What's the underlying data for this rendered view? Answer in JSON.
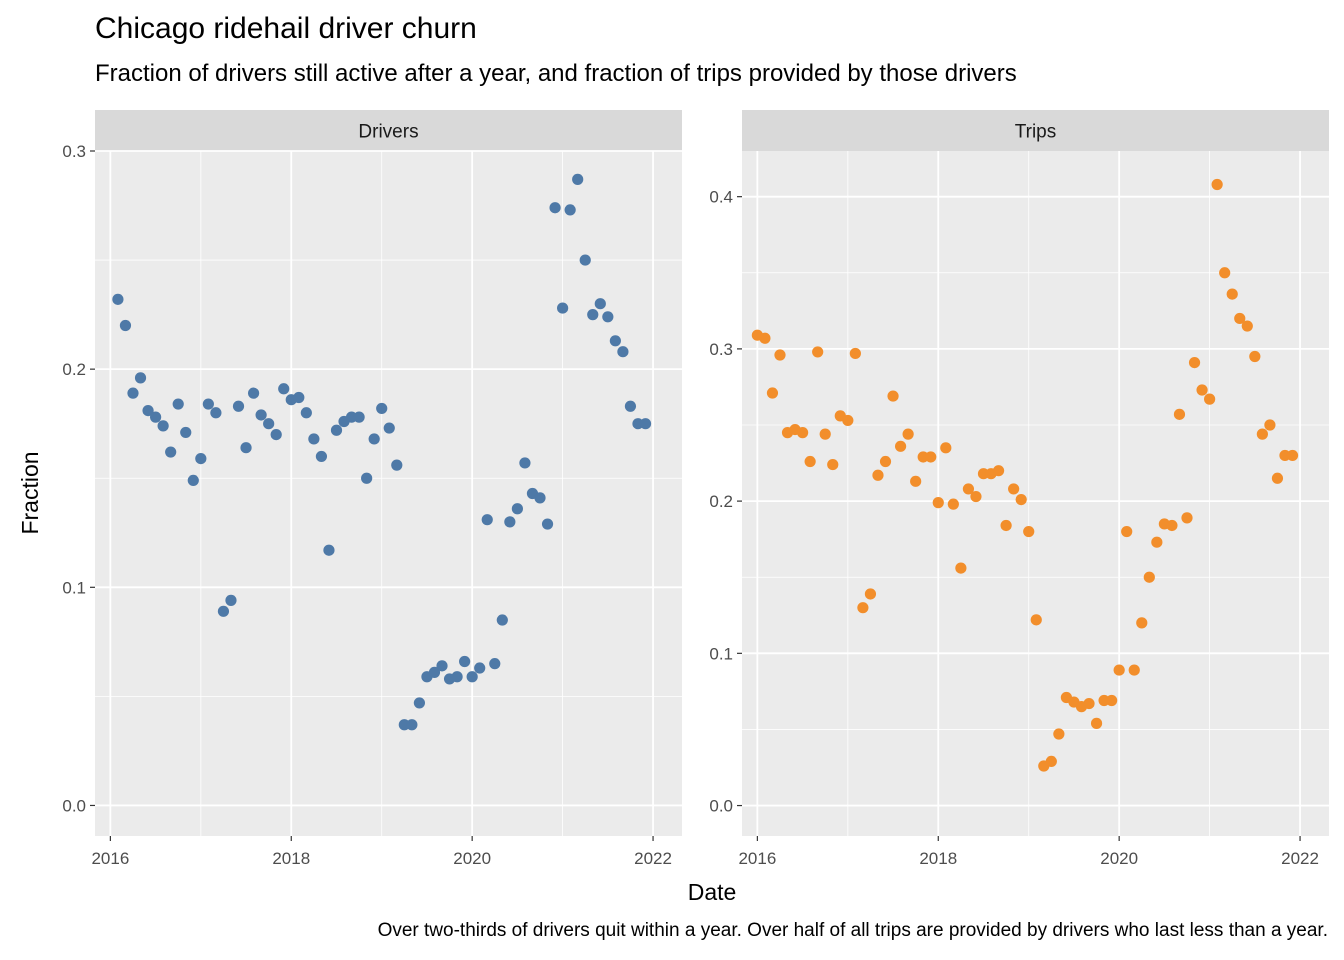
{
  "title": "Chicago ridehail driver churn",
  "subtitle": "Fraction of drivers still active after a year, and fraction of trips provided by those drivers",
  "caption": "Over two-thirds of drivers quit within a year. Over half of all trips are provided by drivers who last less than a year.",
  "colors": {
    "drivers": "#4e79a7",
    "trips": "#f28e2b",
    "panel_bg": "#ebebeb",
    "strip_bg": "#d9d9d9",
    "grid": "#ffffff"
  },
  "chart_data": {
    "type": "scatter",
    "xlabel": "Date",
    "ylabel": "Fraction",
    "x_ticks": [
      "2016",
      "2018",
      "2020",
      "2022"
    ],
    "grid": true,
    "panels": [
      {
        "name": "Drivers",
        "ylim": [
          -0.014,
          0.3
        ],
        "y_ticks": [
          "0.0",
          "0.1",
          "0.2",
          "0.3"
        ],
        "x": [
          "2016-02",
          "2016-03",
          "2016-04",
          "2016-05",
          "2016-06",
          "2016-07",
          "2016-08",
          "2016-09",
          "2016-10",
          "2016-11",
          "2016-12",
          "2017-01",
          "2017-02",
          "2017-03",
          "2017-04",
          "2017-05",
          "2017-06",
          "2017-07",
          "2017-08",
          "2017-09",
          "2017-10",
          "2017-11",
          "2017-12",
          "2018-01",
          "2018-02",
          "2018-03",
          "2018-04",
          "2018-05",
          "2018-06",
          "2018-07",
          "2018-08",
          "2018-09",
          "2018-10",
          "2018-11",
          "2018-12",
          "2019-01",
          "2019-02",
          "2019-03",
          "2019-04",
          "2019-05",
          "2019-06",
          "2019-07",
          "2019-08",
          "2019-09",
          "2019-10",
          "2019-11",
          "2019-12",
          "2020-01",
          "2020-02",
          "2020-03",
          "2020-04",
          "2020-05",
          "2020-06",
          "2020-07",
          "2020-08",
          "2020-09",
          "2020-10",
          "2020-11",
          "2020-12",
          "2021-01",
          "2021-02",
          "2021-03",
          "2021-04",
          "2021-05",
          "2021-06",
          "2021-07",
          "2021-08",
          "2021-09",
          "2021-10",
          "2021-11",
          "2021-12"
        ],
        "values": [
          0.232,
          0.22,
          0.189,
          0.196,
          0.181,
          0.178,
          0.174,
          0.162,
          0.184,
          0.171,
          0.149,
          0.159,
          0.184,
          0.18,
          0.089,
          0.094,
          0.183,
          0.164,
          0.189,
          0.179,
          0.175,
          0.17,
          0.191,
          0.186,
          0.187,
          0.18,
          0.168,
          0.16,
          0.117,
          0.172,
          0.176,
          0.178,
          0.178,
          0.15,
          0.168,
          0.182,
          0.173,
          0.156,
          0.037,
          0.037,
          0.047,
          0.059,
          0.061,
          0.064,
          0.058,
          0.059,
          0.066,
          0.059,
          0.063,
          0.131,
          0.065,
          0.085,
          0.13,
          0.136,
          0.157,
          0.143,
          0.141,
          0.129,
          0.274,
          0.228,
          0.273,
          0.287,
          0.25,
          0.225,
          0.23,
          0.224,
          0.213,
          0.208,
          0.183,
          0.175,
          0.175
        ]
      },
      {
        "name": "Trips",
        "ylim": [
          -0.02,
          0.43
        ],
        "y_ticks": [
          "0.0",
          "0.1",
          "0.2",
          "0.3",
          "0.4"
        ],
        "x": [
          "2016-01",
          "2016-02",
          "2016-03",
          "2016-04",
          "2016-05",
          "2016-06",
          "2016-07",
          "2016-08",
          "2016-09",
          "2016-10",
          "2016-11",
          "2016-12",
          "2017-01",
          "2017-02",
          "2017-03",
          "2017-04",
          "2017-05",
          "2017-06",
          "2017-07",
          "2017-08",
          "2017-09",
          "2017-10",
          "2017-11",
          "2017-12",
          "2018-01",
          "2018-02",
          "2018-03",
          "2018-04",
          "2018-05",
          "2018-06",
          "2018-07",
          "2018-08",
          "2018-09",
          "2018-10",
          "2018-11",
          "2018-12",
          "2019-01",
          "2019-02",
          "2019-03",
          "2019-04",
          "2019-05",
          "2019-06",
          "2019-07",
          "2019-08",
          "2019-09",
          "2019-10",
          "2019-11",
          "2019-12",
          "2020-01",
          "2020-02",
          "2020-03",
          "2020-04",
          "2020-05",
          "2020-06",
          "2020-07",
          "2020-08",
          "2020-09",
          "2020-10",
          "2020-11",
          "2020-12",
          "2021-01",
          "2021-02",
          "2021-03",
          "2021-04",
          "2021-05",
          "2021-06",
          "2021-07",
          "2021-08",
          "2021-09",
          "2021-10",
          "2021-11",
          "2021-12"
        ],
        "values": [
          0.309,
          0.307,
          0.271,
          0.296,
          0.245,
          0.247,
          0.245,
          0.226,
          0.298,
          0.244,
          0.224,
          0.256,
          0.253,
          0.297,
          0.13,
          0.139,
          0.217,
          0.226,
          0.269,
          0.236,
          0.244,
          0.213,
          0.229,
          0.229,
          0.199,
          0.235,
          0.198,
          0.156,
          0.208,
          0.203,
          0.218,
          0.218,
          0.22,
          0.184,
          0.208,
          0.201,
          0.18,
          0.122,
          0.026,
          0.029,
          0.047,
          0.071,
          0.068,
          0.065,
          0.067,
          0.054,
          0.069,
          0.069,
          0.089,
          0.18,
          0.089,
          0.12,
          0.15,
          0.173,
          0.185,
          0.184,
          0.257,
          0.189,
          0.291,
          0.273,
          0.267,
          0.408,
          0.35,
          0.336,
          0.32,
          0.315,
          0.295,
          0.244,
          0.25,
          0.215,
          0.23,
          0.23
        ]
      }
    ]
  }
}
